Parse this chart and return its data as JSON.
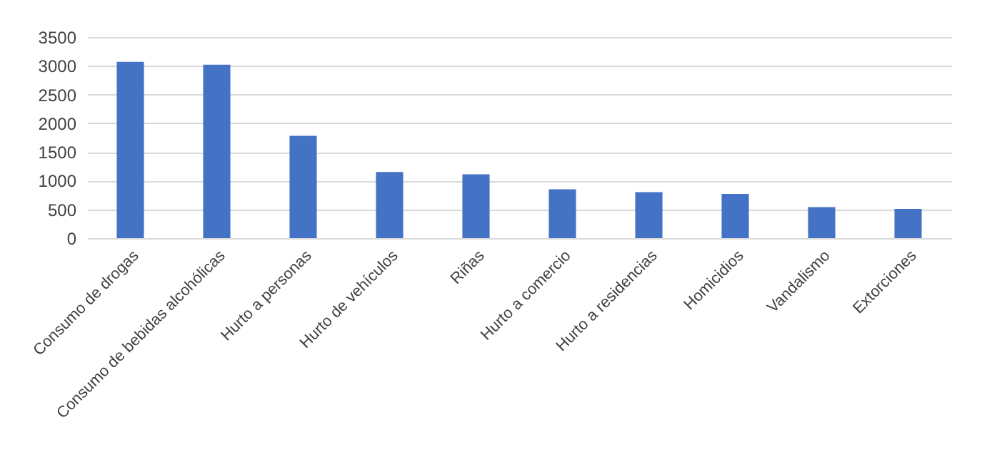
{
  "chart_data": {
    "type": "bar",
    "categories": [
      "Consumo de drogas",
      "Consumo de bebidas alcohólicas",
      "Hurto a personas",
      "Hurto de vehículos",
      "Riñas",
      "Hurto a comercio",
      "Hurto a residencias",
      "Homicidios",
      "Vandalismo",
      "Extorciones"
    ],
    "values": [
      3070,
      3020,
      1780,
      1150,
      1110,
      850,
      800,
      770,
      540,
      510
    ],
    "color": "#4472c4",
    "ylim": [
      0,
      3500
    ],
    "yticks": [
      0,
      500,
      1000,
      1500,
      2000,
      2500,
      3000,
      3500
    ],
    "grid": "y"
  }
}
